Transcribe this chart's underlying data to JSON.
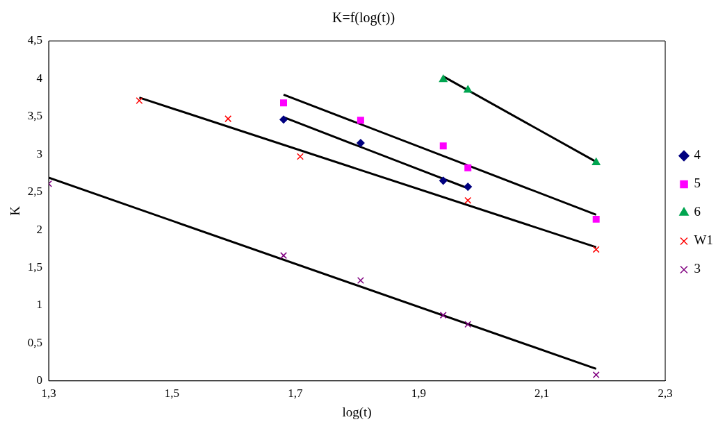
{
  "chart_data": {
    "type": "scatter",
    "title": "K=f(log(t))",
    "xlabel": "log(t)",
    "ylabel": "K",
    "xlim": [
      1.3,
      2.3
    ],
    "xticks": [
      {
        "value": 1.3,
        "label": "1,3"
      },
      {
        "value": 1.5,
        "label": "1,5"
      },
      {
        "value": 1.7,
        "label": "1,7"
      },
      {
        "value": 1.9,
        "label": "1,9"
      },
      {
        "value": 2.1,
        "label": "2,1"
      },
      {
        "value": 2.3,
        "label": "2,3"
      }
    ],
    "ylim": [
      0,
      4.5
    ],
    "yticks": [
      0,
      {
        "value": 0.5,
        "label": "0,5"
      },
      1,
      {
        "value": 1.5,
        "label": "1,5"
      },
      2,
      {
        "value": 2.5,
        "label": "2,5"
      },
      3,
      {
        "value": 3.5,
        "label": "3,5"
      },
      4,
      {
        "value": 4.5,
        "label": "4,5"
      }
    ],
    "grid": false,
    "legend": "right",
    "series": [
      {
        "name": "4",
        "type": "scatter",
        "marker": "diamond",
        "color": "#000080",
        "x": [
          1.681,
          1.806,
          1.94,
          1.98
        ],
        "values": [
          3.46,
          3.15,
          2.65,
          2.57
        ]
      },
      {
        "name": "5",
        "type": "scatter",
        "marker": "square",
        "color": "#ff00ff",
        "x": [
          1.681,
          1.806,
          1.94,
          1.98,
          2.188
        ],
        "values": [
          3.68,
          3.45,
          3.11,
          2.82,
          2.14
        ]
      },
      {
        "name": "6",
        "type": "scatter",
        "marker": "triangle",
        "color": "#00a550",
        "x": [
          1.94,
          1.98,
          2.188
        ],
        "values": [
          3.99,
          3.85,
          2.89
        ]
      },
      {
        "name": "W1",
        "type": "scatter",
        "marker": "cross",
        "color": "#ff0000",
        "x": [
          1.447,
          1.591,
          1.708,
          1.98,
          2.188
        ],
        "values": [
          3.71,
          3.47,
          2.97,
          2.39,
          1.74
        ]
      },
      {
        "name": "3",
        "type": "scatter",
        "marker": "cross",
        "color": "#800080",
        "x": [
          1.3,
          1.681,
          1.806,
          1.94,
          1.98,
          2.188
        ],
        "values": [
          2.61,
          1.66,
          1.33,
          0.87,
          0.75,
          0.08
        ]
      },
      {
        "type": "line",
        "marker": "none",
        "color": "#000000",
        "x": [
          1.681,
          1.98
        ],
        "values": [
          3.49,
          2.55
        ]
      },
      {
        "type": "line",
        "marker": "none",
        "color": "#000000",
        "x": [
          1.681,
          2.188
        ],
        "values": [
          3.79,
          2.2
        ]
      },
      {
        "type": "line",
        "marker": "none",
        "color": "#000000",
        "x": [
          1.94,
          2.188
        ],
        "values": [
          4.03,
          2.9
        ]
      },
      {
        "type": "line",
        "marker": "none",
        "color": "#000000",
        "x": [
          1.447,
          2.188
        ],
        "values": [
          3.75,
          1.77
        ]
      },
      {
        "type": "line",
        "marker": "none",
        "color": "#000000",
        "x": [
          1.3,
          2.188
        ],
        "values": [
          2.69,
          0.16
        ]
      }
    ]
  }
}
